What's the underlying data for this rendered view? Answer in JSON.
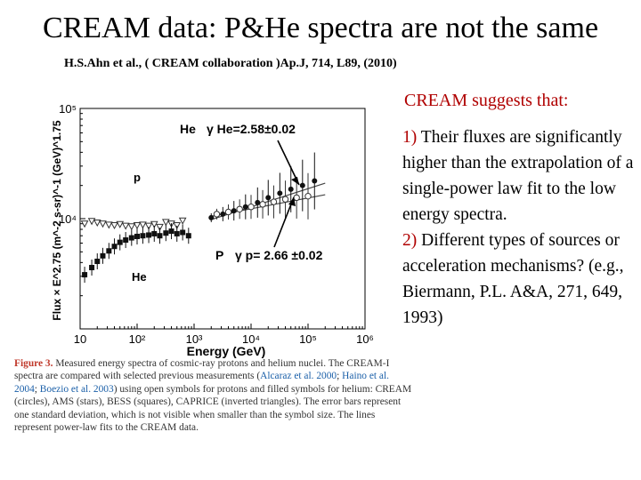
{
  "slide": {
    "title": "CREAM data: P&He spectra are not the same",
    "citation": "H.S.Ahn et al., ( CREAM  collaboration )Ap.J, 714, L89, (2010)"
  },
  "right_panel": {
    "heading": "CREAM suggests that:",
    "point1_num": "1)",
    "point1_text": "Their fluxes are significantly higher than the extrapolation of a single-power law fit to the low energy spectra.",
    "point2_num": "2)",
    "point2_text": "Different types of sources or acceleration mechanisms? (e.g., Biermann, P.L. A&A, 271, 649, 1993)"
  },
  "caption": {
    "head": "Figure 3.",
    "text1": "Measured energy spectra of cosmic-ray protons and helium nuclei. The CREAM-I spectra are compared with selected previous measurements (",
    "ref1": "Alcaraz et al. 2000",
    "sep1": "; ",
    "ref2": "Haino et al. 2004",
    "sep2": "; ",
    "ref3": "Boezio et al. 2003",
    "text2": ") using open symbols for protons and filled symbols for helium: CREAM (circles), AMS (stars), BESS (squares), CAPRICE (inverted triangles). The error bars represent one standard deviation, which is not visible when smaller than the symbol size. The lines represent power-law fits to the CREAM data."
  },
  "chart_data": {
    "type": "scatter",
    "xlabel": "Energy (GeV)",
    "ylabel": "Flux × E^2.75 (m^-2 s-sr)^-1 (GeV)^1.75",
    "xscale": "log",
    "yscale": "log",
    "xlim": [
      10,
      1000000
    ],
    "ylim": [
      1000,
      100000
    ],
    "x_ticks": [
      "10",
      "10²",
      "10³",
      "10⁴",
      "10⁵",
      "10⁶"
    ],
    "y_ticks": [
      "10⁵",
      "10⁴"
    ],
    "annotations": {
      "he_label": "He",
      "he_gamma": "γ He=2.58±0.02",
      "p_label": "P",
      "p_gamma": "γ p= 2.66 ±0.02",
      "series_p": "p",
      "series_he": "He"
    },
    "series": [
      {
        "name": "p",
        "x": [
          12,
          16,
          20,
          25,
          32,
          40,
          50,
          63,
          80,
          100,
          126,
          160,
          200,
          250,
          320,
          400,
          500,
          630
        ],
        "y": [
          9000,
          9500,
          9200,
          9000,
          8800,
          8700,
          8900,
          8600,
          8500,
          8700,
          8800,
          8600,
          8900,
          8400,
          9300,
          9000,
          8700,
          9600
        ]
      },
      {
        "name": "He",
        "x": [
          12,
          16,
          20,
          25,
          32,
          40,
          50,
          63,
          80,
          100,
          126,
          160,
          200,
          250,
          320,
          400,
          500,
          630,
          800
        ],
        "y": [
          3100,
          3600,
          4100,
          4600,
          5100,
          5600,
          6100,
          6400,
          6700,
          6900,
          7000,
          7100,
          7300,
          7000,
          7400,
          7700,
          7300,
          7500,
          7000
        ]
      },
      {
        "name": "p CREAM",
        "x": [
          2500,
          4000,
          6300,
          10000,
          16000,
          25000,
          40000,
          63000,
          100000
        ],
        "y": [
          11000,
          11500,
          12200,
          12800,
          13500,
          14200,
          15000,
          15500,
          16000
        ]
      },
      {
        "name": "He CREAM",
        "x": [
          2000,
          3200,
          5000,
          8000,
          13000,
          20000,
          32000,
          50000,
          80000,
          130000
        ],
        "y": [
          10200,
          11000,
          11800,
          12800,
          14000,
          15500,
          17000,
          18500,
          20000,
          22000
        ]
      }
    ],
    "fit_lines": [
      {
        "name": "p fit",
        "x": [
          2000,
          200000
        ],
        "y": [
          10500,
          16500
        ]
      },
      {
        "name": "He fit",
        "x": [
          2000,
          200000
        ],
        "y": [
          9800,
          21000
        ]
      }
    ]
  }
}
